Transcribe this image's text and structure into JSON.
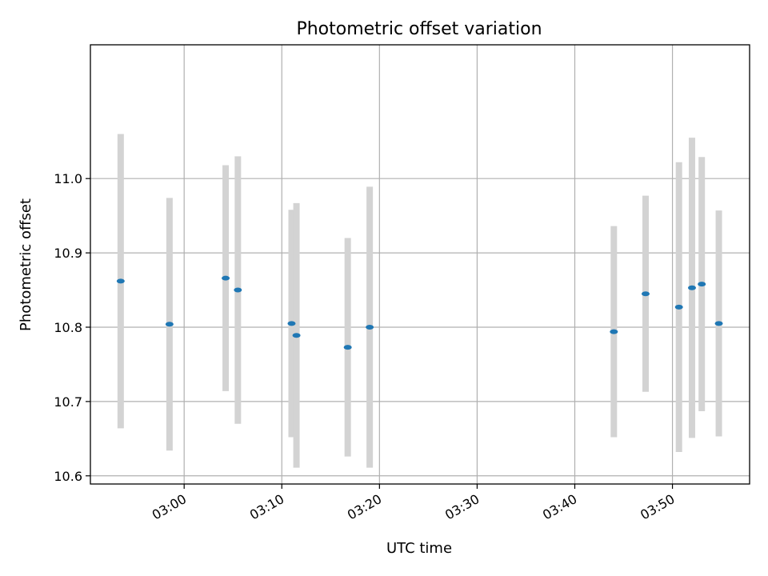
{
  "chart_data": {
    "type": "scatter",
    "title": "Photometric offset variation",
    "xlabel": "UTC time",
    "ylabel": "Photometric offset",
    "x_tick_labels": [
      "03:00",
      "03:10",
      "03:20",
      "03:30",
      "03:40",
      "03:50"
    ],
    "x_tick_minutes": [
      180,
      190,
      200,
      210,
      220,
      230
    ],
    "y_ticks": [
      10.6,
      10.7,
      10.8,
      10.9,
      11.0
    ],
    "y_tick_labels": [
      "10.6",
      "10.7",
      "10.8",
      "10.9",
      "11.0"
    ],
    "xlim_minutes": [
      170.4,
      237.9
    ],
    "ylim": [
      10.589,
      11.18
    ],
    "grid": true,
    "errorbar_color": "#d3d3d3",
    "marker_color": "#1f77b4",
    "points": [
      {
        "time": "02:53:30",
        "y": 10.862,
        "err": 0.198
      },
      {
        "time": "02:58:30",
        "y": 10.804,
        "err": 0.17
      },
      {
        "time": "03:04:15",
        "y": 10.866,
        "err": 0.152
      },
      {
        "time": "03:05:30",
        "y": 10.85,
        "err": 0.18
      },
      {
        "time": "03:11:00",
        "y": 10.805,
        "err": 0.153
      },
      {
        "time": "03:11:30",
        "y": 10.789,
        "err": 0.178
      },
      {
        "time": "03:16:45",
        "y": 10.773,
        "err": 0.147
      },
      {
        "time": "03:19:00",
        "y": 10.8,
        "err": 0.189
      },
      {
        "time": "03:44:00",
        "y": 10.794,
        "err": 0.142
      },
      {
        "time": "03:47:15",
        "y": 10.845,
        "err": 0.132
      },
      {
        "time": "03:50:40",
        "y": 10.827,
        "err": 0.195
      },
      {
        "time": "03:52:00",
        "y": 10.853,
        "err": 0.202
      },
      {
        "time": "03:53:00",
        "y": 10.858,
        "err": 0.171
      },
      {
        "time": "03:54:45",
        "y": 10.805,
        "err": 0.152
      }
    ]
  }
}
